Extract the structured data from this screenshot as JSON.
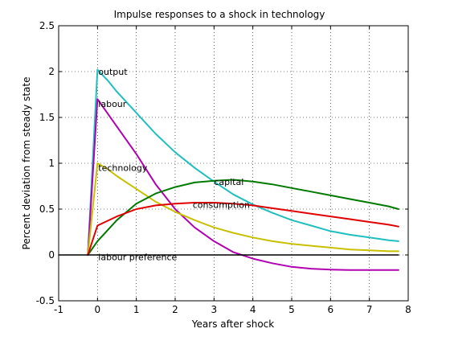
{
  "chart_data": {
    "type": "line",
    "title": "Impulse responses to a shock in technology",
    "xlabel": "Years after shock",
    "ylabel": "Percent deviation from steady state",
    "xlim": [
      -1,
      8
    ],
    "ylim": [
      -0.5,
      2.5
    ],
    "xticks": [
      -1,
      0,
      1,
      2,
      3,
      4,
      5,
      6,
      7,
      8
    ],
    "yticks": [
      -0.5,
      0,
      0.5,
      1,
      1.5,
      2,
      2.5
    ],
    "xtick_labels": [
      "-1",
      "0",
      "1",
      "2",
      "3",
      "4",
      "5",
      "6",
      "7",
      "8"
    ],
    "ytick_labels": [
      "-0.5",
      "0",
      "0.5",
      "1",
      "1.5",
      "2",
      "2.5"
    ],
    "grid": true,
    "grid_style": "dotted",
    "background": "#ffffff",
    "series": [
      {
        "name": "output",
        "color": "#1fbfbf",
        "label_at": [
          0.02,
          2.0
        ],
        "x": [
          -0.25,
          0,
          0.25,
          0.5,
          1,
          1.5,
          2,
          2.5,
          3,
          3.5,
          4,
          4.5,
          5,
          5.5,
          6,
          6.5,
          7,
          7.5,
          7.75
        ],
        "y": [
          0,
          2.02,
          1.91,
          1.78,
          1.55,
          1.32,
          1.12,
          0.95,
          0.8,
          0.66,
          0.55,
          0.46,
          0.38,
          0.32,
          0.26,
          0.22,
          0.19,
          0.16,
          0.15
        ]
      },
      {
        "name": "labour",
        "color": "#b000b0",
        "label_at": [
          0.02,
          1.65
        ],
        "x": [
          -0.25,
          0,
          0.25,
          0.5,
          1,
          1.5,
          2,
          2.5,
          3,
          3.5,
          4,
          4.5,
          5,
          5.5,
          6,
          6.5,
          7,
          7.5,
          7.75
        ],
        "y": [
          0,
          1.7,
          1.55,
          1.4,
          1.1,
          0.77,
          0.5,
          0.3,
          0.15,
          0.03,
          -0.04,
          -0.09,
          -0.13,
          -0.15,
          -0.16,
          -0.165,
          -0.165,
          -0.165,
          -0.165
        ]
      },
      {
        "name": "technology",
        "color": "#c8c000",
        "label_at": [
          0.02,
          0.95
        ],
        "x": [
          -0.25,
          0,
          0.25,
          0.5,
          1,
          1.5,
          2,
          2.5,
          3,
          3.5,
          4,
          4.5,
          5,
          5.5,
          6,
          6.5,
          7,
          7.5,
          7.75
        ],
        "y": [
          0,
          1.0,
          0.94,
          0.86,
          0.72,
          0.58,
          0.47,
          0.38,
          0.3,
          0.24,
          0.19,
          0.15,
          0.12,
          0.1,
          0.08,
          0.06,
          0.05,
          0.04,
          0.04
        ]
      },
      {
        "name": "capital",
        "color": "#007a00",
        "label_at": [
          3.0,
          0.8
        ],
        "x": [
          -0.25,
          0,
          0.5,
          1,
          1.5,
          2,
          2.5,
          3,
          3.5,
          4,
          4.5,
          5,
          5.5,
          6,
          6.5,
          7,
          7.5,
          7.75
        ],
        "y": [
          0,
          0.15,
          0.38,
          0.56,
          0.67,
          0.74,
          0.79,
          0.81,
          0.82,
          0.8,
          0.77,
          0.73,
          0.69,
          0.65,
          0.61,
          0.57,
          0.53,
          0.5
        ]
      },
      {
        "name": "consumption",
        "color": "#e00000",
        "label_at": [
          2.45,
          0.55
        ],
        "x": [
          -0.25,
          0,
          0.5,
          1,
          1.5,
          2,
          2.5,
          3,
          3.5,
          4,
          4.5,
          5,
          5.5,
          6,
          6.5,
          7,
          7.5,
          7.75
        ],
        "y": [
          0,
          0.32,
          0.42,
          0.5,
          0.54,
          0.56,
          0.57,
          0.57,
          0.56,
          0.54,
          0.51,
          0.48,
          0.45,
          0.42,
          0.39,
          0.36,
          0.33,
          0.31
        ]
      },
      {
        "name": "labour preference",
        "color": "#000000",
        "label_at": [
          0.02,
          -0.02
        ],
        "x": [
          -1,
          7.75
        ],
        "y": [
          0,
          0
        ]
      }
    ]
  }
}
